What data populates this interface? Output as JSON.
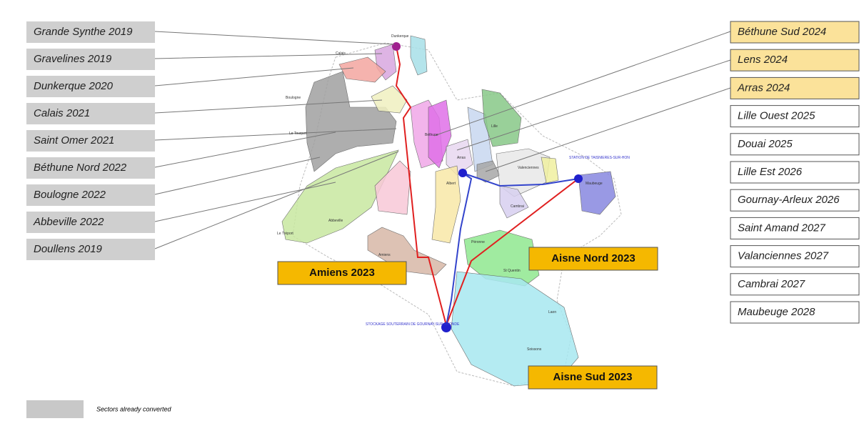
{
  "left_labels": [
    "Grande Synthe 2019",
    "Gravelines 2019",
    "Dunkerque 2020",
    "Calais 2021",
    "Saint Omer 2021",
    "Béthune Nord 2022",
    "Boulogne 2022",
    "Abbeville 2022",
    "Doullens 2019"
  ],
  "right_labels_highlighted": [
    "Béthune Sud 2024",
    "Lens 2024",
    "Arras 2024"
  ],
  "right_labels": [
    "Lille Ouest 2025",
    "Douai 2025",
    "Lille Est 2026",
    "Gournay-Arleux 2026",
    "Saint Amand 2027",
    "Valanciennes 2027",
    "Cambrai 2027",
    "Maubeuge 2028"
  ],
  "center_labels": [
    "Amiens 2023",
    "Aisne Nord 2023",
    "Aisne Sud 2023"
  ],
  "legend": {
    "label": "Sectors already converted"
  },
  "map_labels": [
    "Dunkerque",
    "Calais",
    "Boulogne",
    "Le Touquet",
    "Abbeville",
    "Le Tréport",
    "Amiens",
    "Lille",
    "Béthune",
    "Arras",
    "Valenciennes",
    "Cambrai",
    "Maubeuge",
    "Albert",
    "Péronne",
    "St Quentin",
    "Laon",
    "Soissons"
  ],
  "stations": [
    "STATION DE TAISNIERES-SUR-HON",
    "STOCKAGE SOUTERRAIN DE GOURNAY-SUR-ARONDE"
  ]
}
